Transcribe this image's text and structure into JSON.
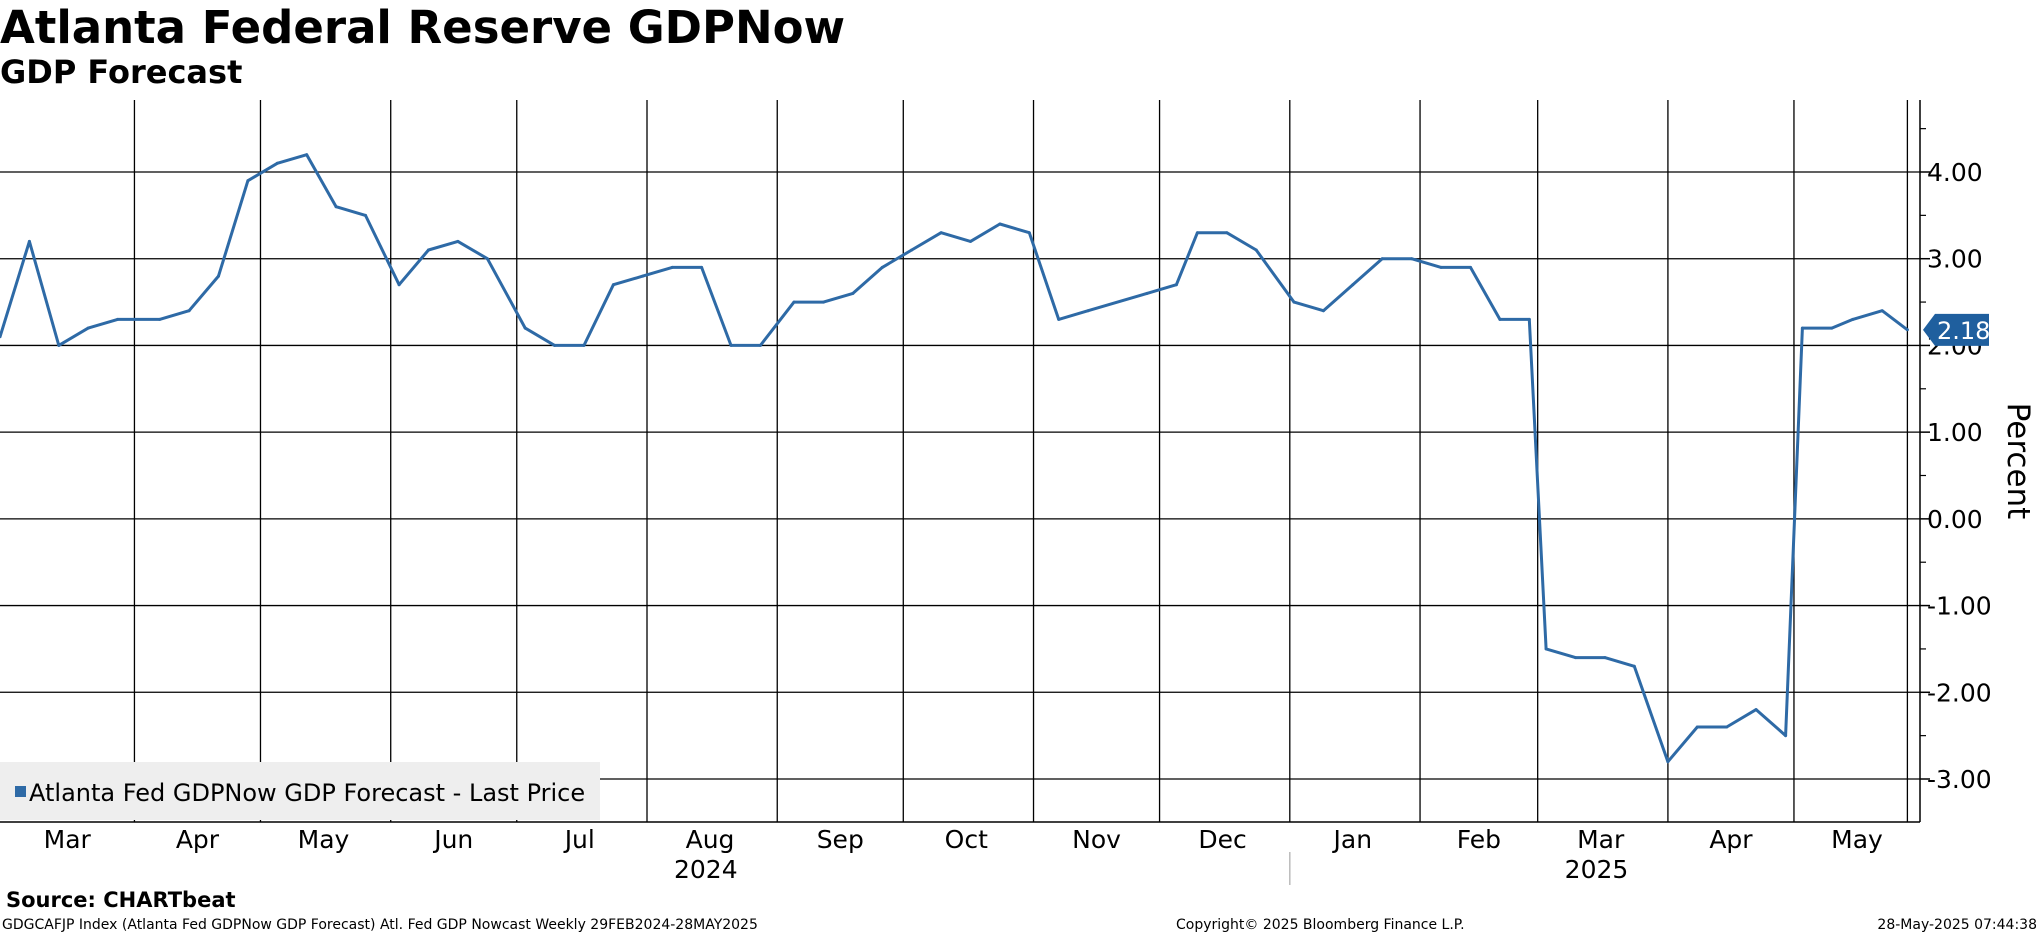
{
  "header": {
    "title": "Atlanta Federal Reserve GDPNow",
    "subtitle": "GDP Forecast"
  },
  "footer": {
    "source": "Source: CHARTbeat",
    "left": "GDGCAFJP Index (Atlanta Fed GDPNow GDP Forecast) Atl. Fed GDP Nowcast  Weekly 29FEB2024-28MAY2025",
    "middle": "Copyright© 2025 Bloomberg Finance L.P.",
    "right": "28-May-2025 07:44:38"
  },
  "colors": {
    "series": "#2e6aa6",
    "label_bg": "#1f5f9e",
    "grid": "#000000",
    "legend_bg": "#eeeeee"
  },
  "chart_data": {
    "type": "line",
    "title": "Atlanta Federal Reserve GDPNow",
    "subtitle": "GDP Forecast",
    "ylabel": "Percent",
    "ylim": [
      -3.5,
      4.8
    ],
    "yticks": [
      4.0,
      3.0,
      2.0,
      1.0,
      0.0,
      -1.0,
      -2.0,
      -3.0
    ],
    "ytick_labels": [
      "4.00",
      "3.00",
      "2.00",
      "1.00",
      "0.00",
      "-1.00",
      "-2.00",
      "-3.00"
    ],
    "x_start": "2024-02-29",
    "x_end": "2025-05-31",
    "frequency": "Weekly",
    "month_labels": [
      {
        "label": "Mar",
        "date": "2024-03-16"
      },
      {
        "label": "Apr",
        "date": "2024-04-16"
      },
      {
        "label": "May",
        "date": "2024-05-16"
      },
      {
        "label": "Jun",
        "date": "2024-06-16"
      },
      {
        "label": "Jul",
        "date": "2024-07-16"
      },
      {
        "label": "Aug",
        "date": "2024-08-16"
      },
      {
        "label": "Sep",
        "date": "2024-09-16"
      },
      {
        "label": "Oct",
        "date": "2024-10-16"
      },
      {
        "label": "Nov",
        "date": "2024-11-16"
      },
      {
        "label": "Dec",
        "date": "2024-12-16"
      },
      {
        "label": "Jan",
        "date": "2025-01-16"
      },
      {
        "label": "Feb",
        "date": "2025-02-15"
      },
      {
        "label": "Mar",
        "date": "2025-03-16"
      },
      {
        "label": "Apr",
        "date": "2025-04-16"
      },
      {
        "label": "May",
        "date": "2025-05-16"
      }
    ],
    "year_labels": [
      {
        "label": "2024",
        "date": "2024-08-15"
      },
      {
        "label": "2025",
        "date": "2025-03-15"
      }
    ],
    "gridline_dates": [
      "2024-04-01",
      "2024-05-01",
      "2024-06-01",
      "2024-07-01",
      "2024-08-01",
      "2024-09-01",
      "2024-10-01",
      "2024-11-01",
      "2024-12-01",
      "2025-01-01",
      "2025-02-01",
      "2025-03-01",
      "2025-04-01",
      "2025-05-01",
      "2025-05-28"
    ],
    "year_divider_date": "2025-01-01",
    "series": [
      {
        "name": "Atlanta Fed GDPNow GDP Forecast - Last Price",
        "last_value": "2.18",
        "points": [
          {
            "x": "2024-02-29",
            "y": 2.1
          },
          {
            "x": "2024-03-07",
            "y": 3.2
          },
          {
            "x": "2024-03-14",
            "y": 2.0
          },
          {
            "x": "2024-03-21",
            "y": 2.2
          },
          {
            "x": "2024-03-28",
            "y": 2.3
          },
          {
            "x": "2024-04-07",
            "y": 2.3
          },
          {
            "x": "2024-04-14",
            "y": 2.4
          },
          {
            "x": "2024-04-21",
            "y": 2.8
          },
          {
            "x": "2024-04-28",
            "y": 3.9
          },
          {
            "x": "2024-05-05",
            "y": 4.1
          },
          {
            "x": "2024-05-12",
            "y": 4.2
          },
          {
            "x": "2024-05-19",
            "y": 3.6
          },
          {
            "x": "2024-05-26",
            "y": 3.5
          },
          {
            "x": "2024-06-03",
            "y": 2.7
          },
          {
            "x": "2024-06-10",
            "y": 3.1
          },
          {
            "x": "2024-06-17",
            "y": 3.2
          },
          {
            "x": "2024-06-24",
            "y": 3.0
          },
          {
            "x": "2024-07-03",
            "y": 2.2
          },
          {
            "x": "2024-07-10",
            "y": 2.0
          },
          {
            "x": "2024-07-17",
            "y": 2.0
          },
          {
            "x": "2024-07-24",
            "y": 2.7
          },
          {
            "x": "2024-07-31",
            "y": 2.8
          },
          {
            "x": "2024-08-07",
            "y": 2.9
          },
          {
            "x": "2024-08-14",
            "y": 2.9
          },
          {
            "x": "2024-08-21",
            "y": 2.0
          },
          {
            "x": "2024-08-28",
            "y": 2.0
          },
          {
            "x": "2024-09-05",
            "y": 2.5
          },
          {
            "x": "2024-09-12",
            "y": 2.5
          },
          {
            "x": "2024-09-19",
            "y": 2.6
          },
          {
            "x": "2024-09-26",
            "y": 2.9
          },
          {
            "x": "2024-10-03",
            "y": 3.1
          },
          {
            "x": "2024-10-10",
            "y": 3.3
          },
          {
            "x": "2024-10-17",
            "y": 3.2
          },
          {
            "x": "2024-10-24",
            "y": 3.4
          },
          {
            "x": "2024-10-31",
            "y": 3.3
          },
          {
            "x": "2024-11-07",
            "y": 2.3
          },
          {
            "x": "2024-11-14",
            "y": 2.4
          },
          {
            "x": "2024-11-28",
            "y": 2.6
          },
          {
            "x": "2024-12-05",
            "y": 2.7
          },
          {
            "x": "2024-12-10",
            "y": 3.3
          },
          {
            "x": "2024-12-17",
            "y": 3.3
          },
          {
            "x": "2024-12-24",
            "y": 3.1
          },
          {
            "x": "2025-01-02",
            "y": 2.5
          },
          {
            "x": "2025-01-09",
            "y": 2.4
          },
          {
            "x": "2025-01-16",
            "y": 2.7
          },
          {
            "x": "2025-01-23",
            "y": 3.0
          },
          {
            "x": "2025-01-30",
            "y": 3.0
          },
          {
            "x": "2025-02-06",
            "y": 2.9
          },
          {
            "x": "2025-02-13",
            "y": 2.9
          },
          {
            "x": "2025-02-20",
            "y": 2.3
          },
          {
            "x": "2025-02-27",
            "y": 2.3
          },
          {
            "x": "2025-03-03",
            "y": -1.5
          },
          {
            "x": "2025-03-10",
            "y": -1.6
          },
          {
            "x": "2025-03-17",
            "y": -1.6
          },
          {
            "x": "2025-03-24",
            "y": -1.7
          },
          {
            "x": "2025-04-01",
            "y": -2.8
          },
          {
            "x": "2025-04-08",
            "y": -2.4
          },
          {
            "x": "2025-04-15",
            "y": -2.4
          },
          {
            "x": "2025-04-22",
            "y": -2.2
          },
          {
            "x": "2025-04-29",
            "y": -2.5
          },
          {
            "x": "2025-05-03",
            "y": 2.2
          },
          {
            "x": "2025-05-10",
            "y": 2.2
          },
          {
            "x": "2025-05-15",
            "y": 2.3
          },
          {
            "x": "2025-05-22",
            "y": 2.4
          },
          {
            "x": "2025-05-28",
            "y": 2.18
          }
        ]
      }
    ]
  }
}
